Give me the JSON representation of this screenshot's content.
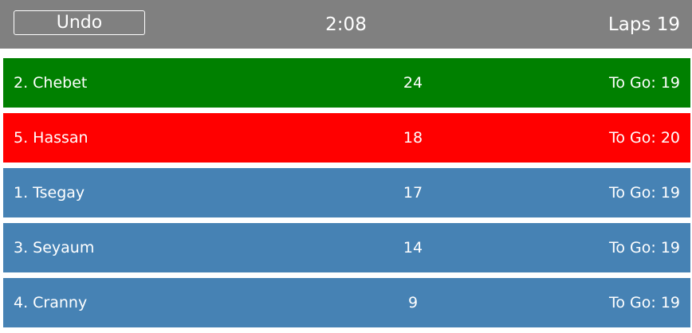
{
  "header": {
    "undo_label": "Undo",
    "timer": "2:08",
    "laps_label": "Laps",
    "laps_value": "19"
  },
  "colors": {
    "header_bg": "#808080",
    "leader": "#008000",
    "behind": "#ff0000",
    "normal": "#4682b4"
  },
  "runners": [
    {
      "name": "2. Chebet",
      "count": "24",
      "togo_label": "To Go:",
      "togo": "19",
      "status": "leader"
    },
    {
      "name": "5. Hassan",
      "count": "18",
      "togo_label": "To Go:",
      "togo": "20",
      "status": "behind"
    },
    {
      "name": "1. Tsegay",
      "count": "17",
      "togo_label": "To Go:",
      "togo": "19",
      "status": "normal"
    },
    {
      "name": "3. Seyaum",
      "count": "14",
      "togo_label": "To Go:",
      "togo": "19",
      "status": "normal"
    },
    {
      "name": "4. Cranny",
      "count": "9",
      "togo_label": "To Go:",
      "togo": "19",
      "status": "normal"
    }
  ]
}
